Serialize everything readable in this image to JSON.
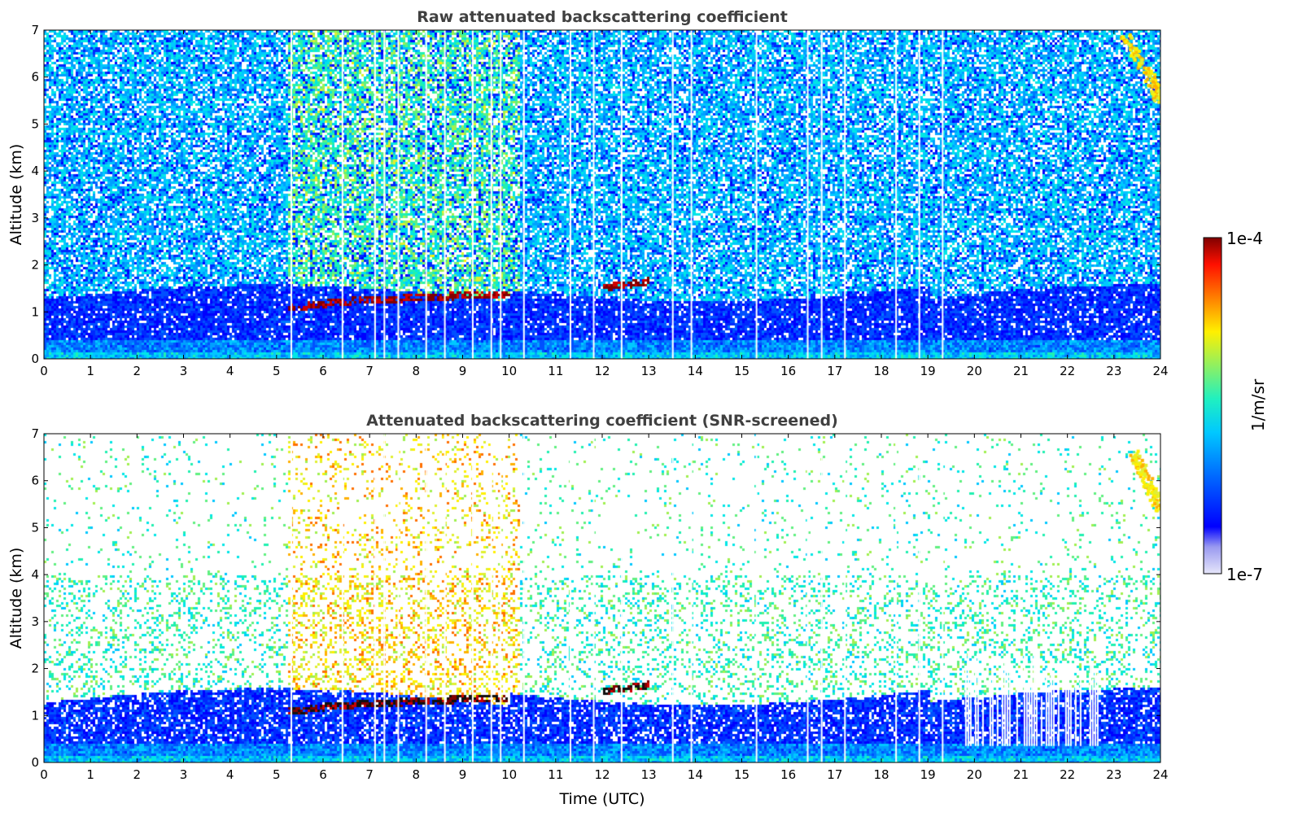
{
  "colorbar": {
    "max_label": "1e-4",
    "min_label": "1e-7",
    "unit_label": "1/m/sr",
    "colors": [
      "#e6e6fa",
      "#c8c8f5",
      "#aaaaf0",
      "#8c8cf0",
      "#0000ff",
      "#0028ff",
      "#0050ff",
      "#0078ff",
      "#00a0ff",
      "#00c8ff",
      "#00e6e6",
      "#20f0b0",
      "#60f080",
      "#a0f050",
      "#e0f030",
      "#fff000",
      "#ffb000",
      "#ff7000",
      "#ff2000",
      "#d00000",
      "#800000"
    ]
  },
  "chart_data": [
    {
      "type": "heatmap",
      "title": "Raw attenuated backscattering coefficient",
      "xlabel": "",
      "ylabel": "Altitude (km)",
      "xlim": [
        0,
        24
      ],
      "ylim": [
        0,
        7
      ],
      "x_ticks": [
        "0",
        "1",
        "2",
        "3",
        "4",
        "5",
        "6",
        "7",
        "8",
        "9",
        "10",
        "11",
        "12",
        "13",
        "14",
        "15",
        "16",
        "17",
        "18",
        "19",
        "20",
        "21",
        "22",
        "23",
        "24"
      ],
      "y_ticks": [
        "0",
        "1",
        "2",
        "3",
        "4",
        "5",
        "6",
        "7"
      ],
      "color_scale": {
        "min": 1e-07,
        "max": 0.0001,
        "log": true,
        "unit": "1/m/sr"
      },
      "features": {
        "cloud_layer": {
          "x": [
            5.2,
            5.6,
            6.0,
            6.5,
            7.0,
            7.5,
            8.0,
            8.5,
            9.0,
            9.5,
            10.0,
            12.0,
            12.5,
            13.0
          ],
          "y": [
            1.12,
            1.15,
            1.2,
            1.25,
            1.28,
            1.3,
            1.33,
            1.35,
            1.37,
            1.4,
            1.4,
            1.55,
            1.6,
            1.68
          ]
        },
        "upper_aerosol": {
          "x": [
            23.2,
            23.5,
            23.8,
            23.95
          ],
          "y": [
            6.9,
            6.4,
            5.9,
            5.5
          ]
        },
        "dropout_times": [
          5.3,
          6.4,
          7.1,
          7.3,
          7.6,
          8.2,
          8.6,
          9.2,
          9.6,
          9.8,
          10.3,
          11.3,
          11.8,
          12.4,
          13.5,
          13.9,
          15.3,
          16.4,
          16.7,
          17.2,
          18.3,
          18.8,
          19.3
        ]
      }
    },
    {
      "type": "heatmap",
      "title": "Attenuated backscattering coefficient (SNR-screened)",
      "xlabel": "Time (UTC)",
      "ylabel": "Altitude (km)",
      "xlim": [
        0,
        24
      ],
      "ylim": [
        0,
        7
      ],
      "x_ticks": [
        "0",
        "1",
        "2",
        "3",
        "4",
        "5",
        "6",
        "7",
        "8",
        "9",
        "10",
        "11",
        "12",
        "13",
        "14",
        "15",
        "16",
        "17",
        "18",
        "19",
        "20",
        "21",
        "22",
        "23",
        "24"
      ],
      "y_ticks": [
        "0",
        "1",
        "2",
        "3",
        "4",
        "5",
        "6",
        "7"
      ],
      "color_scale": {
        "min": 1e-07,
        "max": 0.0001,
        "log": true,
        "unit": "1/m/sr"
      },
      "features": {
        "cloud_layer": {
          "x": [
            5.2,
            5.6,
            6.0,
            6.5,
            7.0,
            7.5,
            8.0,
            8.5,
            9.0,
            9.5,
            10.0,
            12.0,
            12.5,
            13.0
          ],
          "y": [
            1.12,
            1.15,
            1.2,
            1.25,
            1.28,
            1.3,
            1.33,
            1.35,
            1.37,
            1.4,
            1.4,
            1.55,
            1.6,
            1.68
          ]
        },
        "upper_aerosol": {
          "x": [
            23.4,
            23.6,
            23.8,
            23.95
          ],
          "y": [
            6.6,
            6.2,
            5.8,
            5.4
          ]
        },
        "screened_floor": {
          "x": [
            19.8,
            22.7
          ],
          "y": 0.35
        },
        "dropout_times": [
          5.3,
          6.4,
          7.1,
          7.3,
          7.6,
          8.2,
          8.6,
          9.2,
          9.6,
          9.8,
          10.3,
          11.3,
          11.8,
          12.4,
          13.5,
          13.9,
          15.3,
          16.4,
          16.7,
          17.2,
          18.3,
          18.8,
          19.3
        ]
      }
    }
  ]
}
